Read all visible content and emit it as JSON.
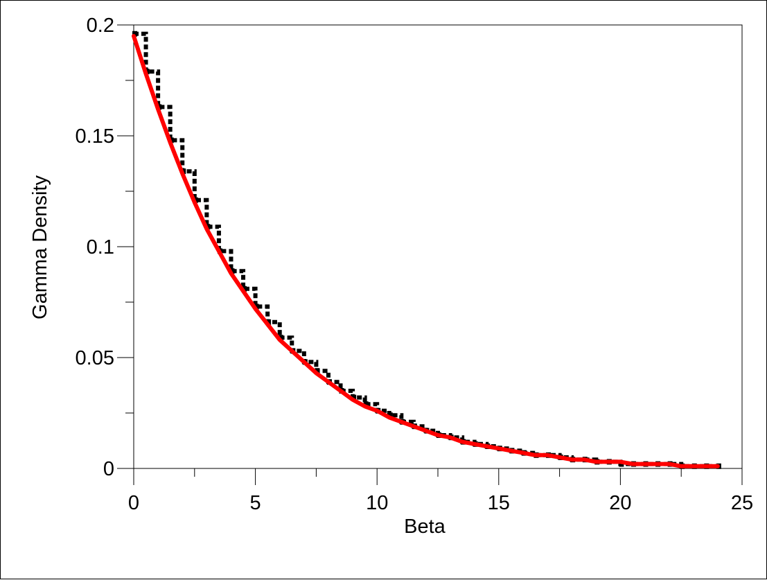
{
  "chart_data": {
    "type": "line",
    "title": "",
    "xlabel": "Beta",
    "ylabel": "Gamma Density",
    "xlim": [
      0,
      25
    ],
    "ylim": [
      0,
      0.2
    ],
    "x_ticks": [
      0,
      5,
      10,
      15,
      20,
      25
    ],
    "x_tick_labels": [
      "0",
      "5",
      "10",
      "15",
      "20",
      "25"
    ],
    "y_ticks": [
      0,
      0.05,
      0.1,
      0.15,
      0.2
    ],
    "y_tick_labels": [
      "0",
      "0.05",
      "0.1",
      "0.15",
      "0.2"
    ],
    "grid": false,
    "legend": "none",
    "series": [
      {
        "style": "step",
        "color": "#000000",
        "x": [
          0,
          0.5,
          1,
          1.5,
          2,
          2.5,
          3,
          3.5,
          4,
          4.5,
          5,
          5.5,
          6,
          6.5,
          7,
          7.5,
          8,
          8.5,
          9,
          9.5,
          10,
          10.5,
          11,
          11.5,
          12,
          12.5,
          13,
          13.5,
          14,
          14.5,
          15,
          15.5,
          16,
          16.5,
          17,
          17.5,
          18,
          18.5,
          19,
          19.5,
          20,
          20.5,
          21,
          21.5,
          22,
          22.5,
          23,
          23.5,
          24
        ],
        "values": [
          0.196,
          0.179,
          0.163,
          0.148,
          0.134,
          0.121,
          0.109,
          0.098,
          0.089,
          0.081,
          0.073,
          0.066,
          0.059,
          0.053,
          0.048,
          0.044,
          0.039,
          0.035,
          0.032,
          0.029,
          0.026,
          0.024,
          0.021,
          0.019,
          0.017,
          0.015,
          0.014,
          0.012,
          0.011,
          0.01,
          0.009,
          0.008,
          0.007,
          0.006,
          0.006,
          0.005,
          0.004,
          0.004,
          0.003,
          0.003,
          0.002,
          0.002,
          0.002,
          0.002,
          0.002,
          0.001,
          0.001,
          0.001,
          0.001
        ]
      },
      {
        "style": "line",
        "color": "#ff0000",
        "x": [
          0,
          0.5,
          1,
          1.5,
          2,
          2.5,
          3,
          3.5,
          4,
          4.5,
          5,
          5.5,
          6,
          6.5,
          7,
          7.5,
          8,
          8.5,
          9,
          9.5,
          10,
          10.5,
          11,
          11.5,
          12,
          12.5,
          13,
          13.5,
          14,
          14.5,
          15,
          15.5,
          16,
          16.5,
          17,
          17.5,
          18,
          18.5,
          19,
          19.5,
          20,
          20.5,
          21,
          21.5,
          22,
          22.5,
          23,
          23.5,
          24
        ],
        "values": [
          0.195,
          0.178,
          0.162,
          0.147,
          0.133,
          0.12,
          0.108,
          0.098,
          0.088,
          0.08,
          0.072,
          0.065,
          0.058,
          0.053,
          0.048,
          0.043,
          0.039,
          0.035,
          0.031,
          0.028,
          0.026,
          0.023,
          0.021,
          0.019,
          0.017,
          0.015,
          0.014,
          0.012,
          0.011,
          0.01,
          0.009,
          0.008,
          0.007,
          0.006,
          0.006,
          0.005,
          0.004,
          0.004,
          0.003,
          0.003,
          0.003,
          0.002,
          0.002,
          0.002,
          0.002,
          0.001,
          0.001,
          0.001,
          0.001
        ]
      }
    ]
  }
}
